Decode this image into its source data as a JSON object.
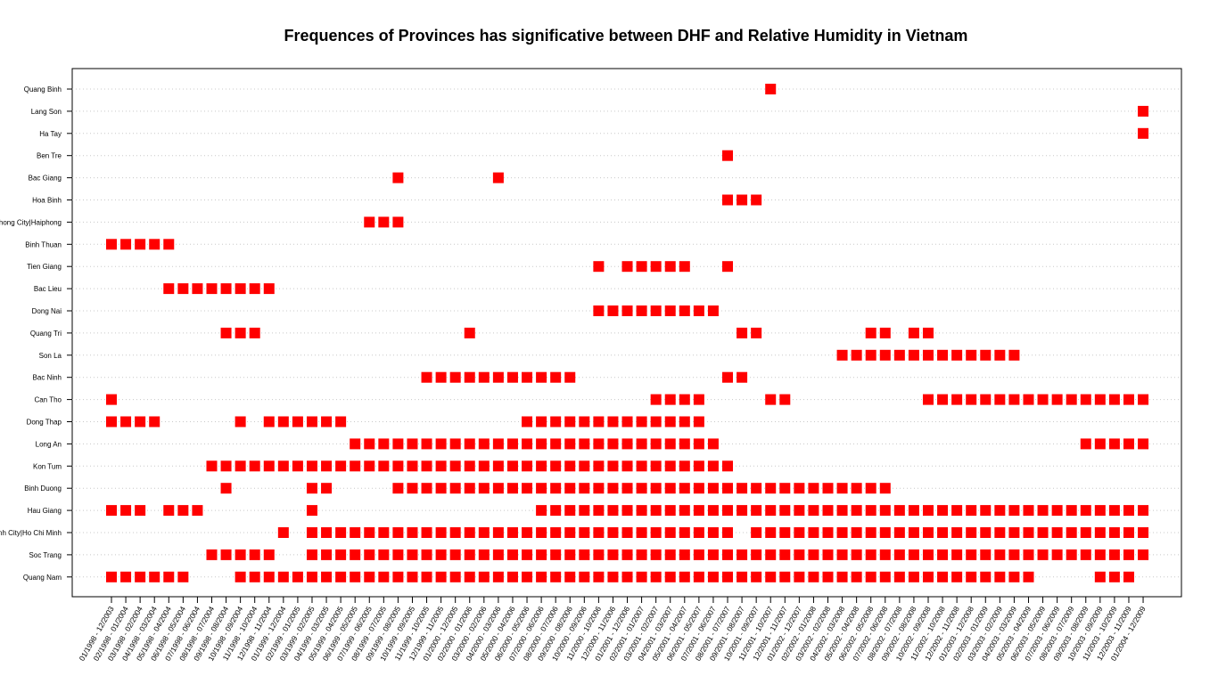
{
  "chart_data": {
    "type": "scatter",
    "title": "Frequences of Provinces has significative between DHF and Relative Humidity in Vietnam",
    "xlabel": "",
    "ylabel": "",
    "grid": "horizontal dotted",
    "legend": "none",
    "marker": "filled square",
    "colors": {
      "marker": "#ff0000",
      "grid": "#c8c8c8",
      "axis": "#000000"
    },
    "categories": [
      "01/1998 - 12/2003",
      "02/1998 - 01/2004",
      "03/1998 - 02/2004",
      "04/1998 - 03/2004",
      "05/1998 - 04/2004",
      "06/1998 - 05/2004",
      "07/1998 - 06/2004",
      "08/1998 - 07/2004",
      "09/1998 - 08/2004",
      "10/1998 - 09/2004",
      "11/1998 - 10/2004",
      "12/1998 - 11/2004",
      "01/1999 - 12/2004",
      "02/1999 - 01/2005",
      "03/1999 - 02/2005",
      "04/1999 - 03/2005",
      "05/1999 - 04/2005",
      "06/1999 - 05/2005",
      "07/1999 - 06/2005",
      "08/1999 - 07/2005",
      "09/1999 - 08/2005",
      "10/1999 - 09/2005",
      "11/1999 - 10/2005",
      "12/1999 - 11/2005",
      "01/2000 - 12/2005",
      "02/2000 - 01/2006",
      "03/2000 - 02/2006",
      "04/2000 - 03/2006",
      "05/2000 - 04/2006",
      "06/2000 - 05/2006",
      "07/2000 - 06/2006",
      "08/2000 - 07/2006",
      "09/2000 - 08/2006",
      "10/2000 - 09/2006",
      "11/2000 - 10/2006",
      "12/2000 - 11/2006",
      "01/2001 - 12/2006",
      "02/2001 - 01/2007",
      "03/2001 - 02/2007",
      "04/2001 - 03/2007",
      "05/2001 - 04/2007",
      "06/2001 - 05/2007",
      "07/2001 - 06/2007",
      "08/2001 - 07/2007",
      "09/2001 - 08/2007",
      "10/2001 - 09/2007",
      "11/2001 - 10/2007",
      "12/2001 - 11/2007",
      "01/2002 - 12/2007",
      "02/2002 - 01/2008",
      "03/2002 - 02/2008",
      "04/2002 - 03/2008",
      "05/2002 - 04/2008",
      "06/2002 - 05/2008",
      "07/2002 - 06/2008",
      "08/2002 - 07/2008",
      "09/2002 - 08/2008",
      "10/2002 - 09/2008",
      "11/2002 - 10/2008",
      "12/2002 - 11/2008",
      "01/2003 - 12/2008",
      "02/2003 - 01/2009",
      "03/2003 - 02/2009",
      "04/2003 - 03/2009",
      "05/2003 - 04/2009",
      "06/2003 - 05/2009",
      "07/2003 - 06/2009",
      "08/2003 - 07/2009",
      "09/2003 - 08/2009",
      "10/2003 - 09/2009",
      "11/2003 - 10/2009",
      "12/2003 - 11/2009",
      "01/2004 - 12/2009"
    ],
    "provinces": [
      "Quang Binh",
      "Lang Son",
      "Ha Tay",
      "Ben Tre",
      "Bac Giang",
      "Hoa Binh",
      "Hai Phong City|Haiphong",
      "Binh Thuan",
      "Tien Giang",
      "Bac Lieu",
      "Dong Nai",
      "Quang Tri",
      "Son La",
      "Bac Ninh",
      "Can Tho",
      "Dong Thap",
      "Long An",
      "Kon Tum",
      "Binh Duong",
      "Hau Giang",
      "Ho Chi Minh City|Ho Chi Minh",
      "Soc Trang",
      "Quang Nam"
    ],
    "series": [
      {
        "province": "Quang Binh",
        "periods": [
          46
        ]
      },
      {
        "province": "Lang Son",
        "periods": [
          72
        ]
      },
      {
        "province": "Ha Tay",
        "periods": [
          72
        ]
      },
      {
        "province": "Ben Tre",
        "periods": [
          43
        ]
      },
      {
        "province": "Bac Giang",
        "periods": [
          20,
          27
        ]
      },
      {
        "province": "Hoa Binh",
        "periods": [
          43,
          44,
          45
        ]
      },
      {
        "province": "Hai Phong City|Haiphong",
        "periods": [
          18,
          19,
          20
        ]
      },
      {
        "province": "Binh Thuan",
        "periods": [
          0,
          1,
          2,
          3,
          4
        ]
      },
      {
        "province": "Tien Giang",
        "periods": [
          34,
          36,
          37,
          38,
          39,
          40,
          43
        ]
      },
      {
        "province": "Bac Lieu",
        "periods": [
          4,
          5,
          6,
          7,
          8,
          9,
          10,
          11
        ]
      },
      {
        "province": "Dong Nai",
        "periods": [
          34,
          35,
          36,
          37,
          38,
          39,
          40,
          41,
          42
        ]
      },
      {
        "province": "Quang Tri",
        "periods": [
          8,
          9,
          10,
          25,
          44,
          45,
          53,
          54,
          56,
          57
        ]
      },
      {
        "province": "Son La",
        "periods": [
          51,
          52,
          53,
          54,
          55,
          56,
          57,
          58,
          59,
          60,
          61,
          62,
          63
        ]
      },
      {
        "province": "Bac Ninh",
        "periods": [
          22,
          23,
          24,
          25,
          26,
          27,
          28,
          29,
          30,
          31,
          32,
          43,
          44
        ]
      },
      {
        "province": "Can Tho",
        "periods": [
          0,
          38,
          39,
          40,
          41,
          46,
          47,
          57,
          58,
          59,
          60,
          61,
          62,
          63,
          64,
          65,
          66,
          67,
          68,
          69,
          70,
          71,
          72
        ]
      },
      {
        "province": "Dong Thap",
        "periods": [
          0,
          1,
          2,
          3,
          9,
          11,
          12,
          13,
          14,
          15,
          16,
          29,
          30,
          31,
          32,
          33,
          34,
          35,
          36,
          37,
          38,
          39,
          40,
          41
        ]
      },
      {
        "province": "Long An",
        "periods": [
          17,
          18,
          19,
          20,
          21,
          22,
          23,
          24,
          25,
          26,
          27,
          28,
          29,
          30,
          31,
          32,
          33,
          34,
          35,
          36,
          37,
          38,
          39,
          40,
          41,
          42,
          68,
          69,
          70,
          71,
          72
        ]
      },
      {
        "province": "Kon Tum",
        "periods": [
          7,
          8,
          9,
          10,
          11,
          12,
          13,
          14,
          15,
          16,
          17,
          18,
          19,
          20,
          21,
          22,
          23,
          24,
          25,
          26,
          27,
          28,
          29,
          30,
          31,
          32,
          33,
          34,
          35,
          36,
          37,
          38,
          39,
          40,
          41,
          42,
          43
        ]
      },
      {
        "province": "Binh Duong",
        "periods": [
          8,
          14,
          15,
          20,
          21,
          22,
          23,
          24,
          25,
          26,
          27,
          28,
          29,
          30,
          31,
          32,
          33,
          34,
          35,
          36,
          37,
          38,
          39,
          40,
          41,
          42,
          43,
          44,
          45,
          46,
          47,
          48,
          49,
          50,
          51,
          52,
          53,
          54
        ]
      },
      {
        "province": "Hau Giang",
        "periods": [
          0,
          1,
          2,
          4,
          5,
          6,
          14,
          30,
          31,
          32,
          33,
          34,
          35,
          36,
          37,
          38,
          39,
          40,
          41,
          42,
          43,
          44,
          45,
          46,
          47,
          48,
          49,
          50,
          51,
          52,
          53,
          54,
          55,
          56,
          57,
          58,
          59,
          60,
          61,
          62,
          63,
          64,
          65,
          66,
          67,
          68,
          69,
          70,
          71,
          72
        ]
      },
      {
        "province": "Ho Chi Minh City|Ho Chi Minh",
        "periods": [
          12,
          14,
          15,
          16,
          17,
          18,
          19,
          20,
          21,
          22,
          23,
          24,
          25,
          26,
          27,
          28,
          29,
          30,
          31,
          32,
          33,
          34,
          35,
          36,
          37,
          38,
          39,
          40,
          41,
          42,
          43,
          45,
          46,
          47,
          48,
          49,
          50,
          51,
          52,
          53,
          54,
          55,
          56,
          57,
          58,
          59,
          60,
          61,
          62,
          63,
          64,
          65,
          66,
          67,
          68,
          69,
          70,
          71,
          72
        ]
      },
      {
        "province": "Soc Trang",
        "periods": [
          7,
          8,
          9,
          10,
          11,
          14,
          15,
          16,
          17,
          18,
          19,
          20,
          21,
          22,
          23,
          24,
          25,
          26,
          27,
          28,
          29,
          30,
          31,
          32,
          33,
          34,
          35,
          36,
          37,
          38,
          39,
          40,
          41,
          42,
          43,
          44,
          45,
          46,
          47,
          48,
          49,
          50,
          51,
          52,
          53,
          54,
          55,
          56,
          57,
          58,
          59,
          60,
          61,
          62,
          63,
          64,
          65,
          66,
          67,
          68,
          69,
          70,
          71,
          72
        ]
      },
      {
        "province": "Quang Nam",
        "periods": [
          0,
          1,
          2,
          3,
          4,
          5,
          9,
          10,
          11,
          12,
          13,
          14,
          15,
          16,
          17,
          18,
          19,
          20,
          21,
          22,
          23,
          24,
          25,
          26,
          27,
          28,
          29,
          30,
          31,
          32,
          33,
          34,
          35,
          36,
          37,
          38,
          39,
          40,
          41,
          42,
          43,
          44,
          45,
          46,
          47,
          48,
          49,
          50,
          51,
          52,
          53,
          54,
          55,
          56,
          57,
          58,
          59,
          60,
          61,
          62,
          63,
          64,
          69,
          70,
          71
        ]
      }
    ]
  }
}
